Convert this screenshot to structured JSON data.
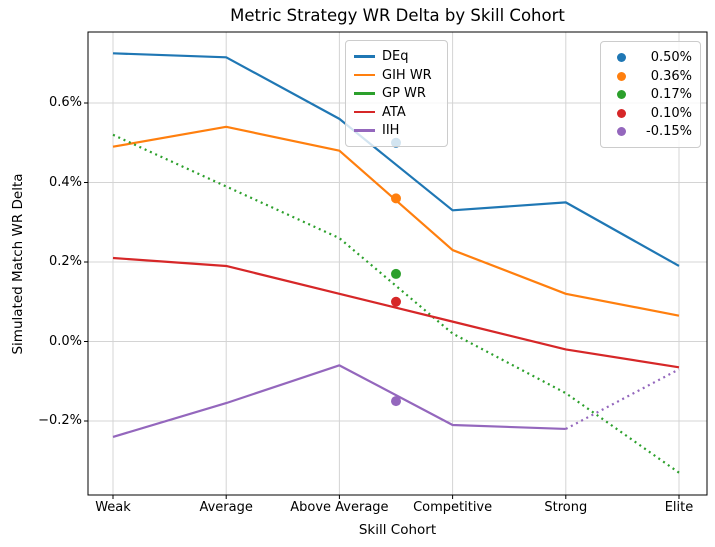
{
  "chart_data": {
    "type": "line",
    "title": "Metric Strategy WR Delta by Skill Cohort",
    "xlabel": "Skill Cohort",
    "ylabel": "Simulated Match WR Delta",
    "categories": [
      "Weak",
      "Average",
      "Above Average",
      "Competitive",
      "Strong",
      "Elite"
    ],
    "y_ticks": [
      {
        "label": "0.6%",
        "value": 0.6
      },
      {
        "label": "0.4%",
        "value": 0.4
      },
      {
        "label": "0.2%",
        "value": 0.2
      },
      {
        "label": "0.0%",
        "value": 0.0
      },
      {
        "label": "−0.2%",
        "value": -0.2
      }
    ],
    "ylim": [
      -0.386,
      0.779
    ],
    "grid": true,
    "grid_color": "#d4d4d4",
    "spine_color": "#000000",
    "background_color": "#ffffff",
    "legend_line_position": "upper center",
    "legend_point_position": "upper right",
    "series": [
      {
        "name": "DEq",
        "color": "#1f77b4",
        "linestyle": "solid",
        "values": [
          0.725,
          0.715,
          0.56,
          0.33,
          0.35,
          0.19
        ]
      },
      {
        "name": "GIH WR",
        "color": "#ff7f0e",
        "linestyle": "solid",
        "values": [
          0.49,
          0.54,
          0.48,
          0.23,
          0.12,
          0.065
        ]
      },
      {
        "name": "GP WR",
        "color": "#2ca02c",
        "linestyle": "dotted",
        "values": [
          0.52,
          0.39,
          0.26,
          0.02,
          -0.13,
          -0.33
        ]
      },
      {
        "name": "ATA",
        "color": "#d62728",
        "linestyle": "solid",
        "values": [
          0.21,
          0.19,
          0.12,
          0.05,
          -0.02,
          -0.065
        ]
      },
      {
        "name": "IIH",
        "color": "#9467bd",
        "linestyle": "solid",
        "dotted_from": 4,
        "values": [
          -0.24,
          -0.155,
          -0.06,
          -0.21,
          -0.22,
          -0.07
        ]
      }
    ],
    "scatter": {
      "x": 2.5,
      "points": [
        {
          "label": "0.50%",
          "color": "#1f77b4",
          "value": 0.5
        },
        {
          "label": "0.36%",
          "color": "#ff7f0e",
          "value": 0.36
        },
        {
          "label": "0.17%",
          "color": "#2ca02c",
          "value": 0.17
        },
        {
          "label": "0.10%",
          "color": "#d62728",
          "value": 0.1
        },
        {
          "label": "-0.15%",
          "color": "#9467bd",
          "value": -0.15
        }
      ]
    }
  }
}
